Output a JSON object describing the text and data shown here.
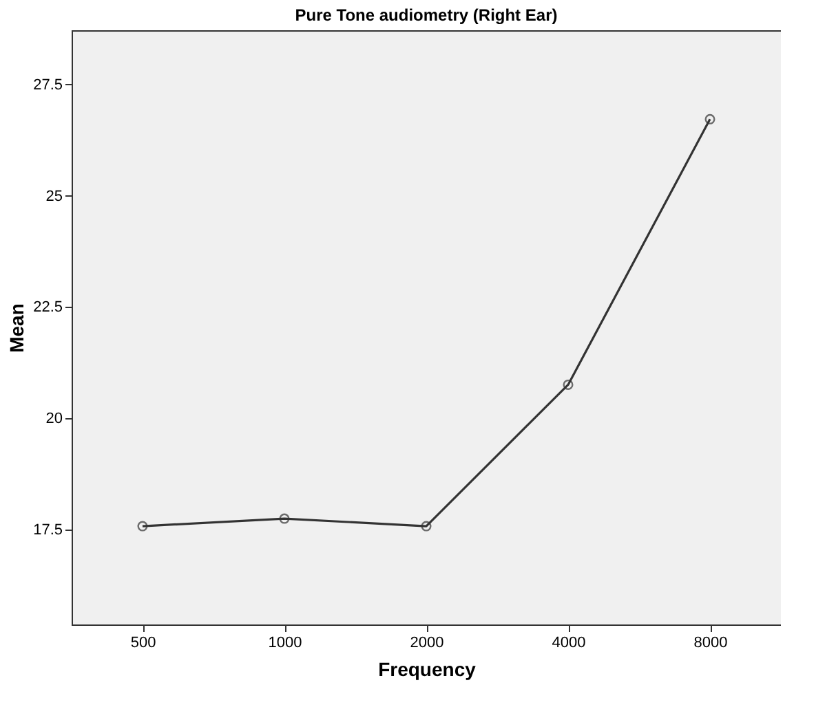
{
  "chart_data": {
    "type": "line",
    "title": "Pure Tone audiometry  (Right Ear)",
    "xlabel": "Frequency",
    "ylabel": "Mean",
    "categories": [
      "500",
      "1000",
      "2000",
      "4000",
      "8000"
    ],
    "series": [
      {
        "color": "#333333",
        "values": [
          17.57,
          17.74,
          17.57,
          20.75,
          26.72
        ]
      }
    ],
    "ylim": [
      15.36,
      28.72
    ],
    "yticks": [
      17.5,
      20,
      22.5,
      25,
      27.5
    ],
    "grid": false,
    "marker": "circle",
    "line_style": "solid"
  }
}
